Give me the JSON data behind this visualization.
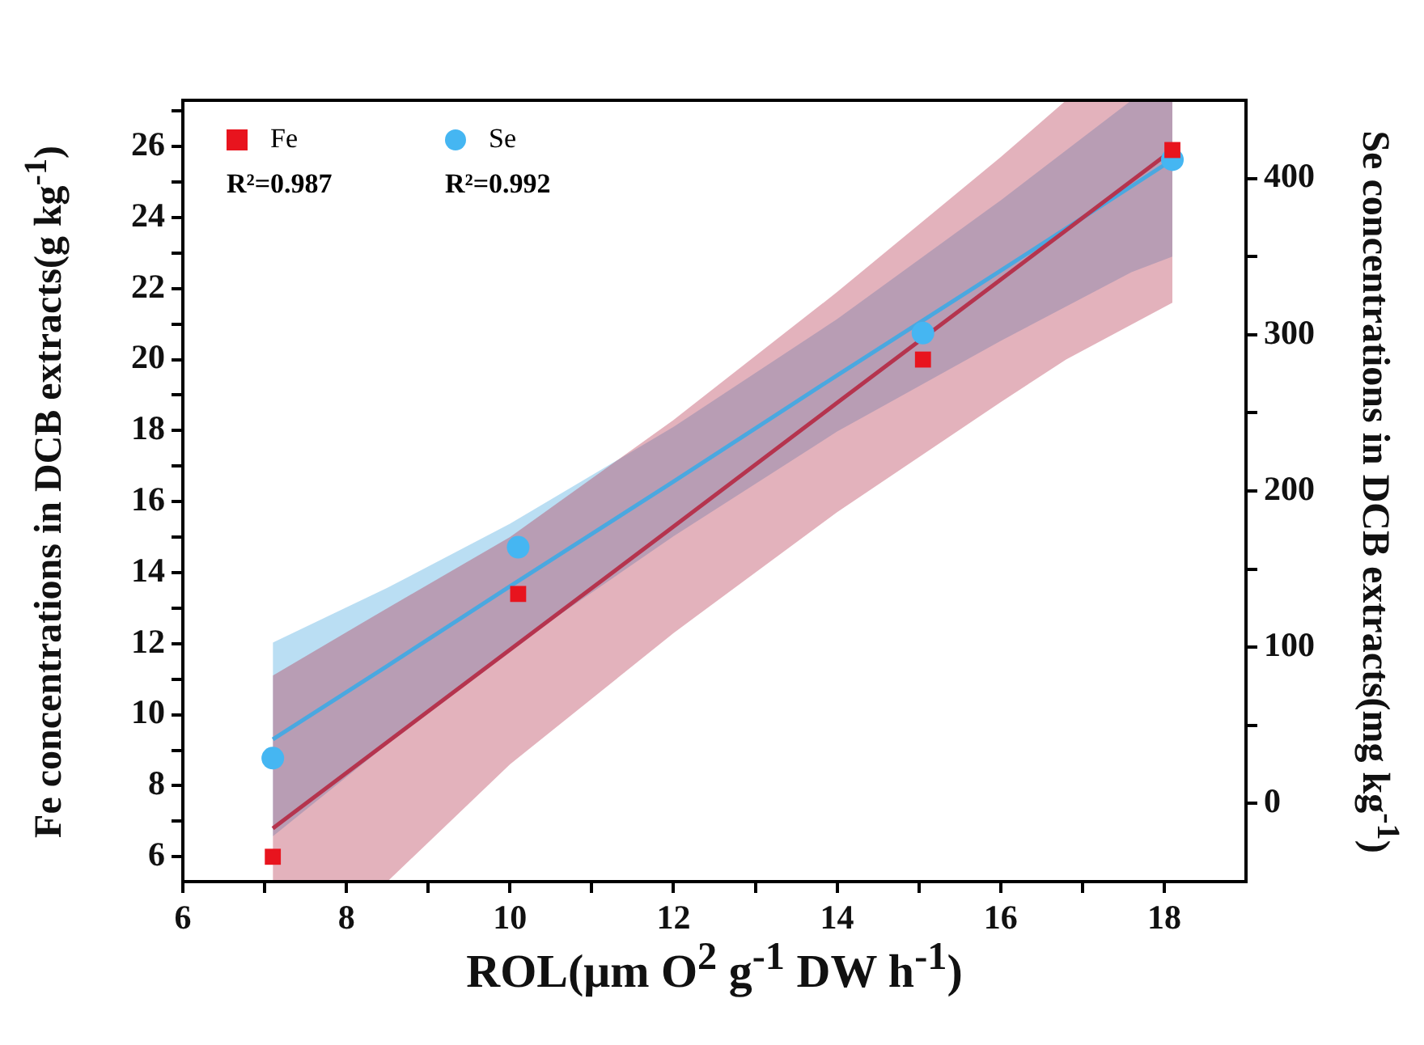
{
  "chart_data": {
    "type": "scatter",
    "xlabel": "ROL(μm O$^{2}$ g$^{-1}$ DW h$^{-1}$)",
    "ylabel": "Fe concentrations in DCB extracts(g kg$^{-1}$)",
    "y2label": "Se concentrations in DCB extracts(mg kg$^{-1}$)",
    "xlim": [
      6,
      19
    ],
    "xticks": [
      6,
      {
        "value": 7,
        "label": null
      },
      8,
      {
        "value": 9,
        "label": null
      },
      10,
      {
        "value": 11,
        "label": null
      },
      12,
      {
        "value": 13,
        "label": null
      },
      14,
      {
        "value": 15,
        "label": null
      },
      16,
      {
        "value": 17,
        "label": null
      },
      18
    ],
    "ylim": [
      5.3,
      27.3
    ],
    "yticks": [
      6,
      {
        "value": 7,
        "label": null
      },
      8,
      {
        "value": 9,
        "label": null
      },
      10,
      {
        "value": 11,
        "label": null
      },
      12,
      {
        "value": 13,
        "label": null
      },
      14,
      {
        "value": 15,
        "label": null
      },
      16,
      {
        "value": 17,
        "label": null
      },
      18,
      {
        "value": 19,
        "label": null
      },
      20,
      {
        "value": 21,
        "label": null
      },
      22,
      {
        "value": 23,
        "label": null
      },
      24,
      {
        "value": 25,
        "label": null
      },
      26,
      {
        "value": 27,
        "label": null
      }
    ],
    "y2lim": [
      -50,
      450
    ],
    "y2ticks": [
      0,
      {
        "value": 50,
        "label": null
      },
      100,
      {
        "value": 150,
        "label": null
      },
      200,
      {
        "value": 250,
        "label": null
      },
      300,
      {
        "value": 350,
        "label": null
      },
      400
    ],
    "legend": "top left",
    "annotations": [
      "R²=0.987",
      "R²=0.992"
    ],
    "series": [
      {
        "type": "line",
        "color": "#b5344e",
        "x": [
          7.1,
          8.5,
          10,
          12,
          14,
          16,
          16.8,
          18.1
        ],
        "values": [
          6.8,
          9.23,
          11.83,
          15.3,
          18.78,
          22.25,
          23.64,
          25.9
        ],
        "lower": [
          5.3,
          5.3,
          8.6,
          12.3,
          15.7,
          18.8,
          20.0,
          21.6
        ],
        "upper": [
          11.1,
          13.0,
          15.0,
          18.3,
          21.9,
          25.7,
          27.3,
          27.3
        ]
      },
      {
        "type": "line",
        "axis": "y2",
        "color": "#4aa8e0",
        "x": [
          7.1,
          8.5,
          10,
          12,
          14,
          16,
          17.6,
          18.1
        ],
        "values": [
          41,
          88,
          139,
          206,
          274,
          341,
          395,
          412
        ],
        "lower": [
          -21,
          38,
          99,
          171,
          238,
          296,
          340,
          350
        ],
        "upper": [
          103,
          138,
          179,
          241,
          310,
          386,
          450,
          450
        ]
      },
      {
        "name": "Fe",
        "type": "scatter",
        "marker": "square",
        "color": "#e8141e",
        "x": [
          7.1,
          10.1,
          15.05,
          18.1
        ],
        "values": [
          6.0,
          13.4,
          20.0,
          25.9
        ]
      },
      {
        "name": "Se",
        "type": "scatter",
        "axis": "y2",
        "marker": "circle",
        "color": "#45b6f2",
        "x": [
          7.1,
          10.1,
          15.05,
          18.1
        ],
        "values": [
          29,
          164,
          301,
          412
        ]
      }
    ]
  }
}
